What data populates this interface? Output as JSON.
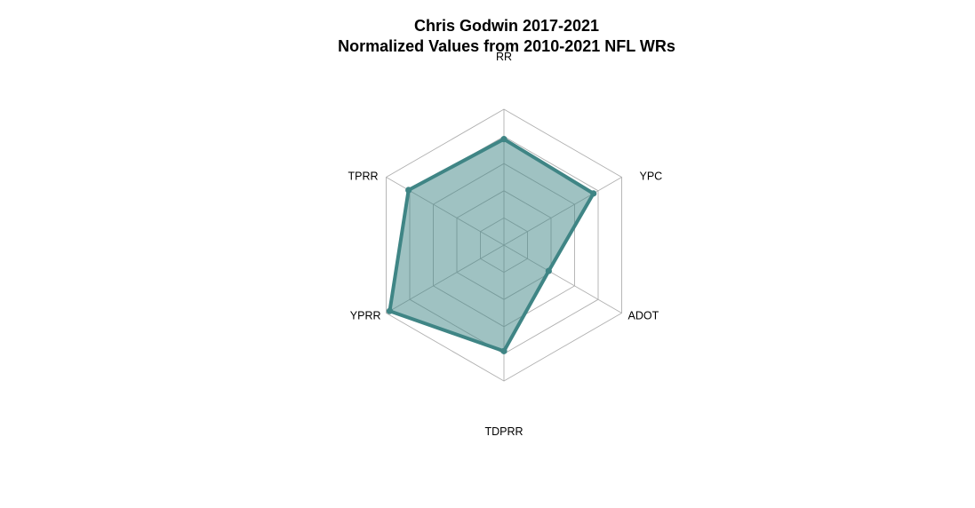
{
  "chart_data": {
    "type": "radar",
    "title": "Chris Godwin 2017-2021",
    "subtitle": "Normalized Values from 2010-2021 NFL WRs",
    "axes": [
      "RR",
      "YPC",
      "ADOT",
      "TDPRR",
      "YPRR",
      "TPRR"
    ],
    "series": [
      {
        "values": [
          0.78,
          0.76,
          0.38,
          0.78,
          0.97,
          0.81
        ]
      }
    ],
    "range": [
      0,
      1
    ],
    "grid_levels": 4,
    "colors": {
      "line": "#3f8585",
      "fill": "#3f8585",
      "fill_opacity": 0.5,
      "grid": "#b0b0b0"
    }
  }
}
